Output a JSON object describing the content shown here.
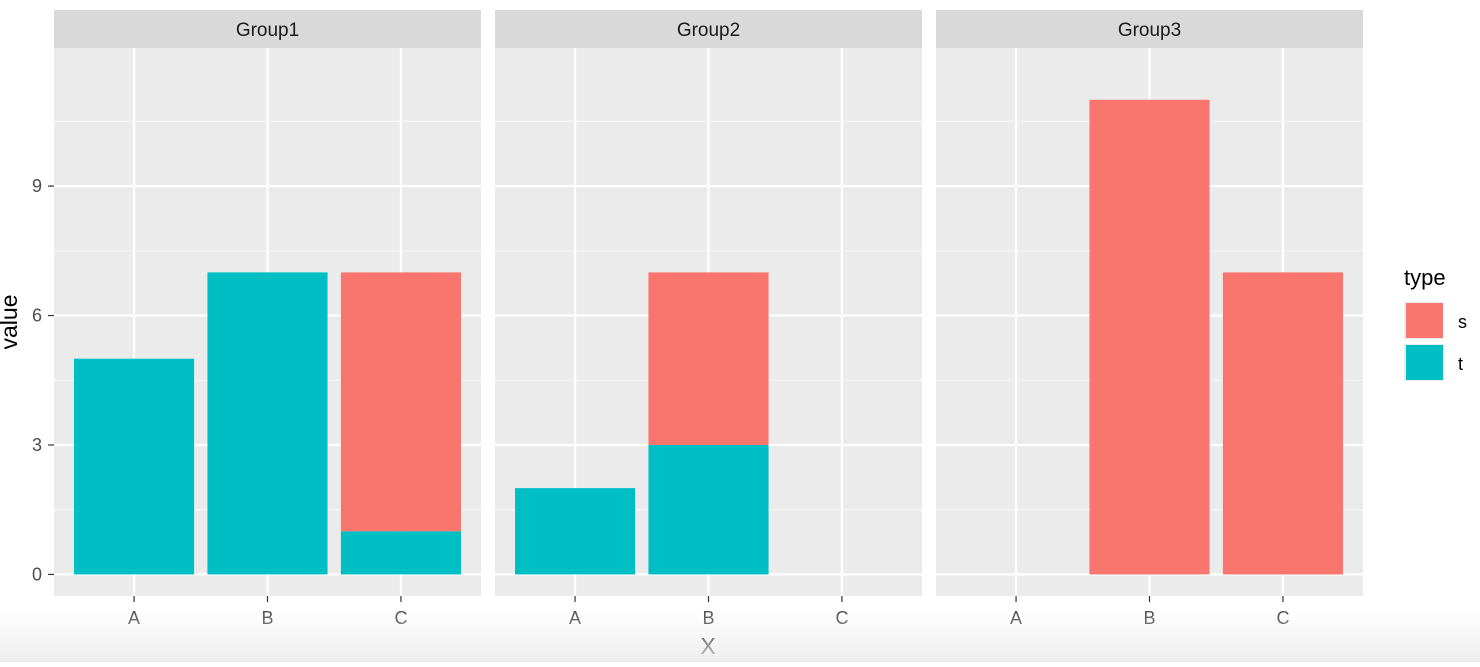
{
  "chart_data": {
    "type": "bar",
    "stacked": true,
    "facet_variable": "Group",
    "xlabel": "X",
    "ylabel": "value",
    "categories": [
      "A",
      "B",
      "C"
    ],
    "y_ticks": [
      0,
      3,
      6,
      9
    ],
    "ylim": [
      -0.5,
      12.2
    ],
    "legend": {
      "title": "type",
      "position": "right"
    },
    "grid": true,
    "series": [
      {
        "name": "s",
        "color": "#F8766D"
      },
      {
        "name": "t",
        "color": "#00BFC4"
      }
    ],
    "panels": [
      {
        "title": "Group1",
        "values": {
          "s": [
            0,
            0,
            6
          ],
          "t": [
            5,
            7,
            1
          ]
        }
      },
      {
        "title": "Group2",
        "values": {
          "s": [
            0,
            4,
            0
          ],
          "t": [
            2,
            3,
            0
          ]
        }
      },
      {
        "title": "Group3",
        "values": {
          "s": [
            0,
            11,
            7
          ],
          "t": [
            0,
            0,
            0
          ]
        }
      }
    ]
  },
  "colors": {
    "panel_bg": "#EBEBEB",
    "strip_bg": "#D9D9D9",
    "grid_major": "#FFFFFF",
    "tick": "#333333"
  }
}
